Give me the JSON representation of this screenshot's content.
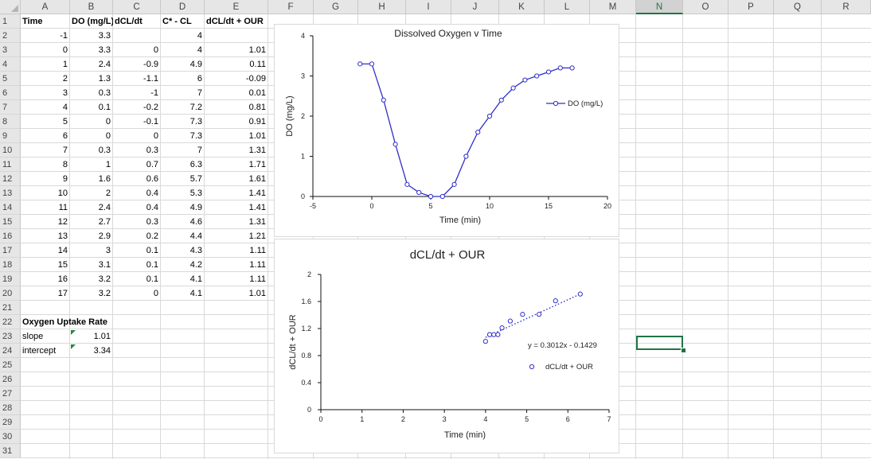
{
  "columns": [
    "A",
    "B",
    "C",
    "D",
    "E",
    "F",
    "G",
    "H",
    "I",
    "J",
    "K",
    "L",
    "M",
    "N",
    "O",
    "P",
    "Q",
    "R"
  ],
  "selected_column": "N",
  "rows": [
    "1",
    "2",
    "3",
    "4",
    "5",
    "6",
    "7",
    "8",
    "9",
    "10",
    "11",
    "12",
    "13",
    "14",
    "15",
    "16",
    "17",
    "18",
    "19",
    "20",
    "21",
    "22",
    "23",
    "24",
    "25",
    "26",
    "27",
    "28",
    "29",
    "30",
    "31"
  ],
  "table": {
    "headers": [
      "Time",
      "DO (mg/L)",
      "dCL/dt",
      "C* - CL",
      "dCL/dt + OUR"
    ],
    "rows": [
      [
        "-1",
        "3.3",
        "",
        "4",
        ""
      ],
      [
        "0",
        "3.3",
        "0",
        "4",
        "1.01"
      ],
      [
        "1",
        "2.4",
        "-0.9",
        "4.9",
        "0.11"
      ],
      [
        "2",
        "1.3",
        "-1.1",
        "6",
        "-0.09"
      ],
      [
        "3",
        "0.3",
        "-1",
        "7",
        "0.01"
      ],
      [
        "4",
        "0.1",
        "-0.2",
        "7.2",
        "0.81"
      ],
      [
        "5",
        "0",
        "-0.1",
        "7.3",
        "0.91"
      ],
      [
        "6",
        "0",
        "0",
        "7.3",
        "1.01"
      ],
      [
        "7",
        "0.3",
        "0.3",
        "7",
        "1.31"
      ],
      [
        "8",
        "1",
        "0.7",
        "6.3",
        "1.71"
      ],
      [
        "9",
        "1.6",
        "0.6",
        "5.7",
        "1.61"
      ],
      [
        "10",
        "2",
        "0.4",
        "5.3",
        "1.41"
      ],
      [
        "11",
        "2.4",
        "0.4",
        "4.9",
        "1.41"
      ],
      [
        "12",
        "2.7",
        "0.3",
        "4.6",
        "1.31"
      ],
      [
        "13",
        "2.9",
        "0.2",
        "4.4",
        "1.21"
      ],
      [
        "14",
        "3",
        "0.1",
        "4.3",
        "1.11"
      ],
      [
        "15",
        "3.1",
        "0.1",
        "4.2",
        "1.11"
      ],
      [
        "16",
        "3.2",
        "0.1",
        "4.1",
        "1.11"
      ],
      [
        "17",
        "3.2",
        "0",
        "4.1",
        "1.01"
      ]
    ]
  },
  "our": {
    "title": "Oxygen Uptake Rate",
    "slope_label": "slope",
    "slope_value": "1.01",
    "intercept_label": "intercept",
    "intercept_value": "3.34"
  },
  "colors": {
    "series": "#2f2fc8",
    "trend": "#2f2fc8",
    "selection": "#217346"
  },
  "chart_data": [
    {
      "type": "line",
      "title": "Dissolved Oxygen v Time",
      "xlabel": "Time (min)",
      "ylabel": "DO (mg/L)",
      "xlim": [
        -5,
        20
      ],
      "ylim": [
        0,
        4
      ],
      "xticks": [
        -5,
        0,
        5,
        10,
        15,
        20
      ],
      "yticks": [
        0,
        1,
        2,
        3,
        4
      ],
      "legend_position": "right",
      "series": [
        {
          "name": "DO (mg/L)",
          "x": [
            -1,
            0,
            1,
            2,
            3,
            4,
            5,
            6,
            7,
            8,
            9,
            10,
            11,
            12,
            13,
            14,
            15,
            16,
            17
          ],
          "y": [
            3.3,
            3.3,
            2.4,
            1.3,
            0.3,
            0.1,
            0,
            0,
            0.3,
            1,
            1.6,
            2,
            2.4,
            2.7,
            2.9,
            3,
            3.1,
            3.2,
            3.2
          ]
        }
      ]
    },
    {
      "type": "scatter",
      "title": "dCL/dt + OUR",
      "xlabel": "Time (min)",
      "ylabel": "dCL/dt + OUR",
      "xlim": [
        0,
        7
      ],
      "ylim": [
        0,
        2
      ],
      "xticks": [
        0,
        1,
        2,
        3,
        4,
        5,
        6,
        7
      ],
      "yticks": [
        0,
        0.4,
        0.8,
        1.2,
        1.6,
        2
      ],
      "legend_position": "right",
      "trendline": {
        "slope": 0.3012,
        "intercept": -0.1429,
        "label": "y = 0.3012x - 0.1429",
        "style": "dotted"
      },
      "series": [
        {
          "name": "dCL/dt + OUR",
          "x": [
            4,
            4.1,
            4.1,
            4.2,
            4.3,
            4.4,
            4.6,
            4.9,
            5.3,
            5.7,
            6.3
          ],
          "y": [
            1.01,
            1.11,
            1.11,
            1.11,
            1.11,
            1.21,
            1.31,
            1.41,
            1.41,
            1.61,
            1.71
          ]
        }
      ]
    }
  ]
}
